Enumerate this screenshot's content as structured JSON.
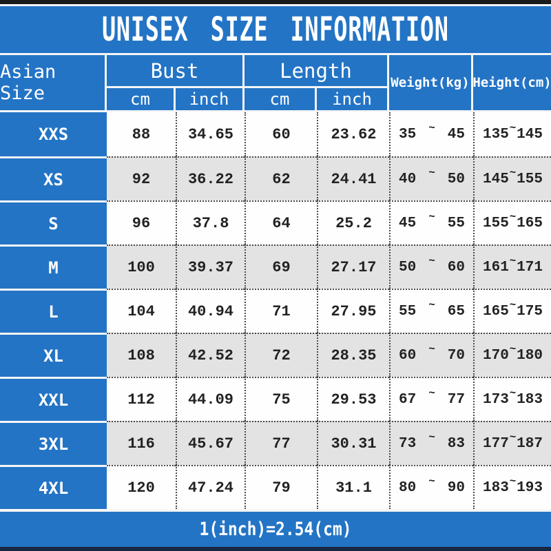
{
  "colors": {
    "accent_blue": "#2374c5",
    "row_alt_gray": "#e4e3e4",
    "row_white": "#fefefe",
    "header_text": "#ffffff",
    "data_text": "#222222",
    "top_bar_black": "#1a1a1a",
    "bottom_bar_navy": "#182741"
  },
  "header": {
    "size_col_label": "Asian Size",
    "bust_label": "Bust",
    "length_label": "Length",
    "unit_cm": "cm",
    "unit_inch": "inch",
    "weight_label": "Weight(kg)",
    "height_label": "Height(cm)"
  },
  "range_separator": "~",
  "chart_data": {
    "type": "table",
    "title": "UNISEX SIZE INFORMATION",
    "columns": [
      "Asian Size",
      "Bust cm",
      "Bust inch",
      "Length cm",
      "Length inch",
      "Weight(kg) min",
      "Weight(kg) max",
      "Height(cm) min",
      "Height(cm) max"
    ],
    "rows": [
      {
        "size": "XXS",
        "bust_cm": "88",
        "bust_inch": "34.65",
        "length_cm": "60",
        "length_inch": "23.62",
        "weight_min": "35",
        "weight_max": "45",
        "height_min": "135",
        "height_max": "145"
      },
      {
        "size": "XS",
        "bust_cm": "92",
        "bust_inch": "36.22",
        "length_cm": "62",
        "length_inch": "24.41",
        "weight_min": "40",
        "weight_max": "50",
        "height_min": "145",
        "height_max": "155"
      },
      {
        "size": "S",
        "bust_cm": "96",
        "bust_inch": "37.8",
        "length_cm": "64",
        "length_inch": "25.2",
        "weight_min": "45",
        "weight_max": "55",
        "height_min": "155",
        "height_max": "165"
      },
      {
        "size": "M",
        "bust_cm": "100",
        "bust_inch": "39.37",
        "length_cm": "69",
        "length_inch": "27.17",
        "weight_min": "50",
        "weight_max": "60",
        "height_min": "161",
        "height_max": "171"
      },
      {
        "size": "L",
        "bust_cm": "104",
        "bust_inch": "40.94",
        "length_cm": "71",
        "length_inch": "27.95",
        "weight_min": "55",
        "weight_max": "65",
        "height_min": "165",
        "height_max": "175"
      },
      {
        "size": "XL",
        "bust_cm": "108",
        "bust_inch": "42.52",
        "length_cm": "72",
        "length_inch": "28.35",
        "weight_min": "60",
        "weight_max": "70",
        "height_min": "170",
        "height_max": "180"
      },
      {
        "size": "XXL",
        "bust_cm": "112",
        "bust_inch": "44.09",
        "length_cm": "75",
        "length_inch": "29.53",
        "weight_min": "67",
        "weight_max": "77",
        "height_min": "173",
        "height_max": "183"
      },
      {
        "size": "3XL",
        "bust_cm": "116",
        "bust_inch": "45.67",
        "length_cm": "77",
        "length_inch": "30.31",
        "weight_min": "73",
        "weight_max": "83",
        "height_min": "177",
        "height_max": "187"
      },
      {
        "size": "4XL",
        "bust_cm": "120",
        "bust_inch": "47.24",
        "length_cm": "79",
        "length_inch": "31.1",
        "weight_min": "80",
        "weight_max": "90",
        "height_min": "183",
        "height_max": "193"
      }
    ],
    "note": "1(inch)=2.54(cm)"
  }
}
